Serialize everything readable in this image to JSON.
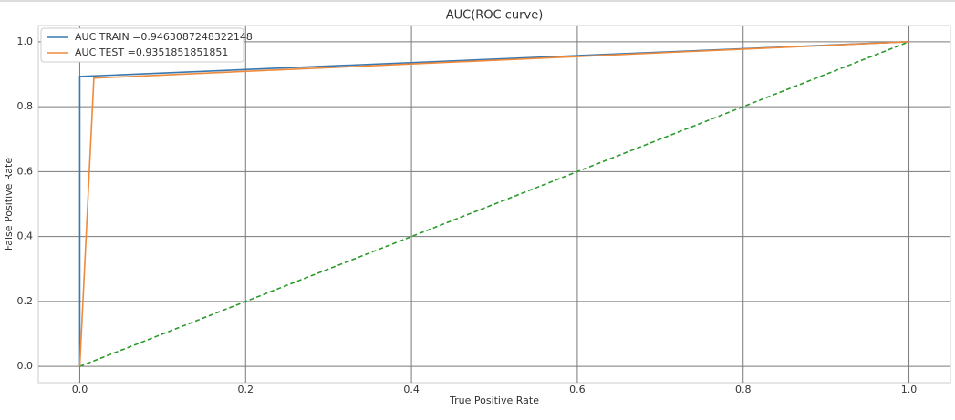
{
  "chart_data": {
    "type": "line",
    "title": "AUC(ROC curve)",
    "x_label": "True Positive Rate",
    "y_label": "False Positive Rate",
    "series": [
      {
        "name": "AUC TRAIN =0.9463087248322148",
        "color": "#3a78b0",
        "x": [
          0,
          0,
          1
        ],
        "values": [
          0,
          0.893,
          1
        ]
      },
      {
        "name": "AUC TEST =0.9351851851851",
        "color": "#ee8a3a",
        "x": [
          0,
          0.017,
          1
        ],
        "values": [
          0,
          0.888,
          1
        ]
      }
    ],
    "diagonal": {
      "color": "#2a9a2a",
      "dashed": true,
      "x": [
        0,
        1
      ],
      "values": [
        0,
        1
      ]
    },
    "xlim": [
      -0.05,
      1.05
    ],
    "ylim": [
      -0.05,
      1.05
    ],
    "xticks": [
      {
        "value": 0,
        "label": "0.0"
      },
      0.2,
      0.4,
      0.6,
      0.8,
      {
        "value": 1,
        "label": "1.0"
      }
    ],
    "yticks": [
      {
        "value": 0,
        "label": "0.0"
      },
      0.2,
      0.4,
      0.6,
      0.8,
      {
        "value": 1,
        "label": "1.0"
      }
    ],
    "grid": true,
    "legend": "upper-left"
  }
}
